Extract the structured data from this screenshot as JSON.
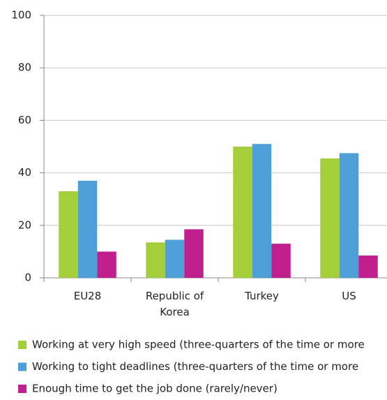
{
  "chart_data": {
    "type": "bar",
    "categories": [
      "EU28",
      "Republic of Korea",
      "Turkey",
      "US"
    ],
    "series": [
      {
        "name": "Working at very high speed (three-quarters of the time or more",
        "color": "#a5cf3a",
        "values": [
          33,
          13.5,
          50,
          45.5
        ]
      },
      {
        "name": "Working to tight deadlines (three-quarters of the time or more",
        "color": "#4e9fd8",
        "values": [
          37,
          14.5,
          51,
          47.5
        ]
      },
      {
        "name": "Enough time to get the job done (rarely/never)",
        "color": "#c01f8e",
        "values": [
          10,
          18.5,
          13,
          8.5
        ]
      }
    ],
    "ylim": [
      0,
      100
    ],
    "yticks": [
      0,
      20,
      40,
      60,
      80,
      100
    ],
    "grid": true
  }
}
